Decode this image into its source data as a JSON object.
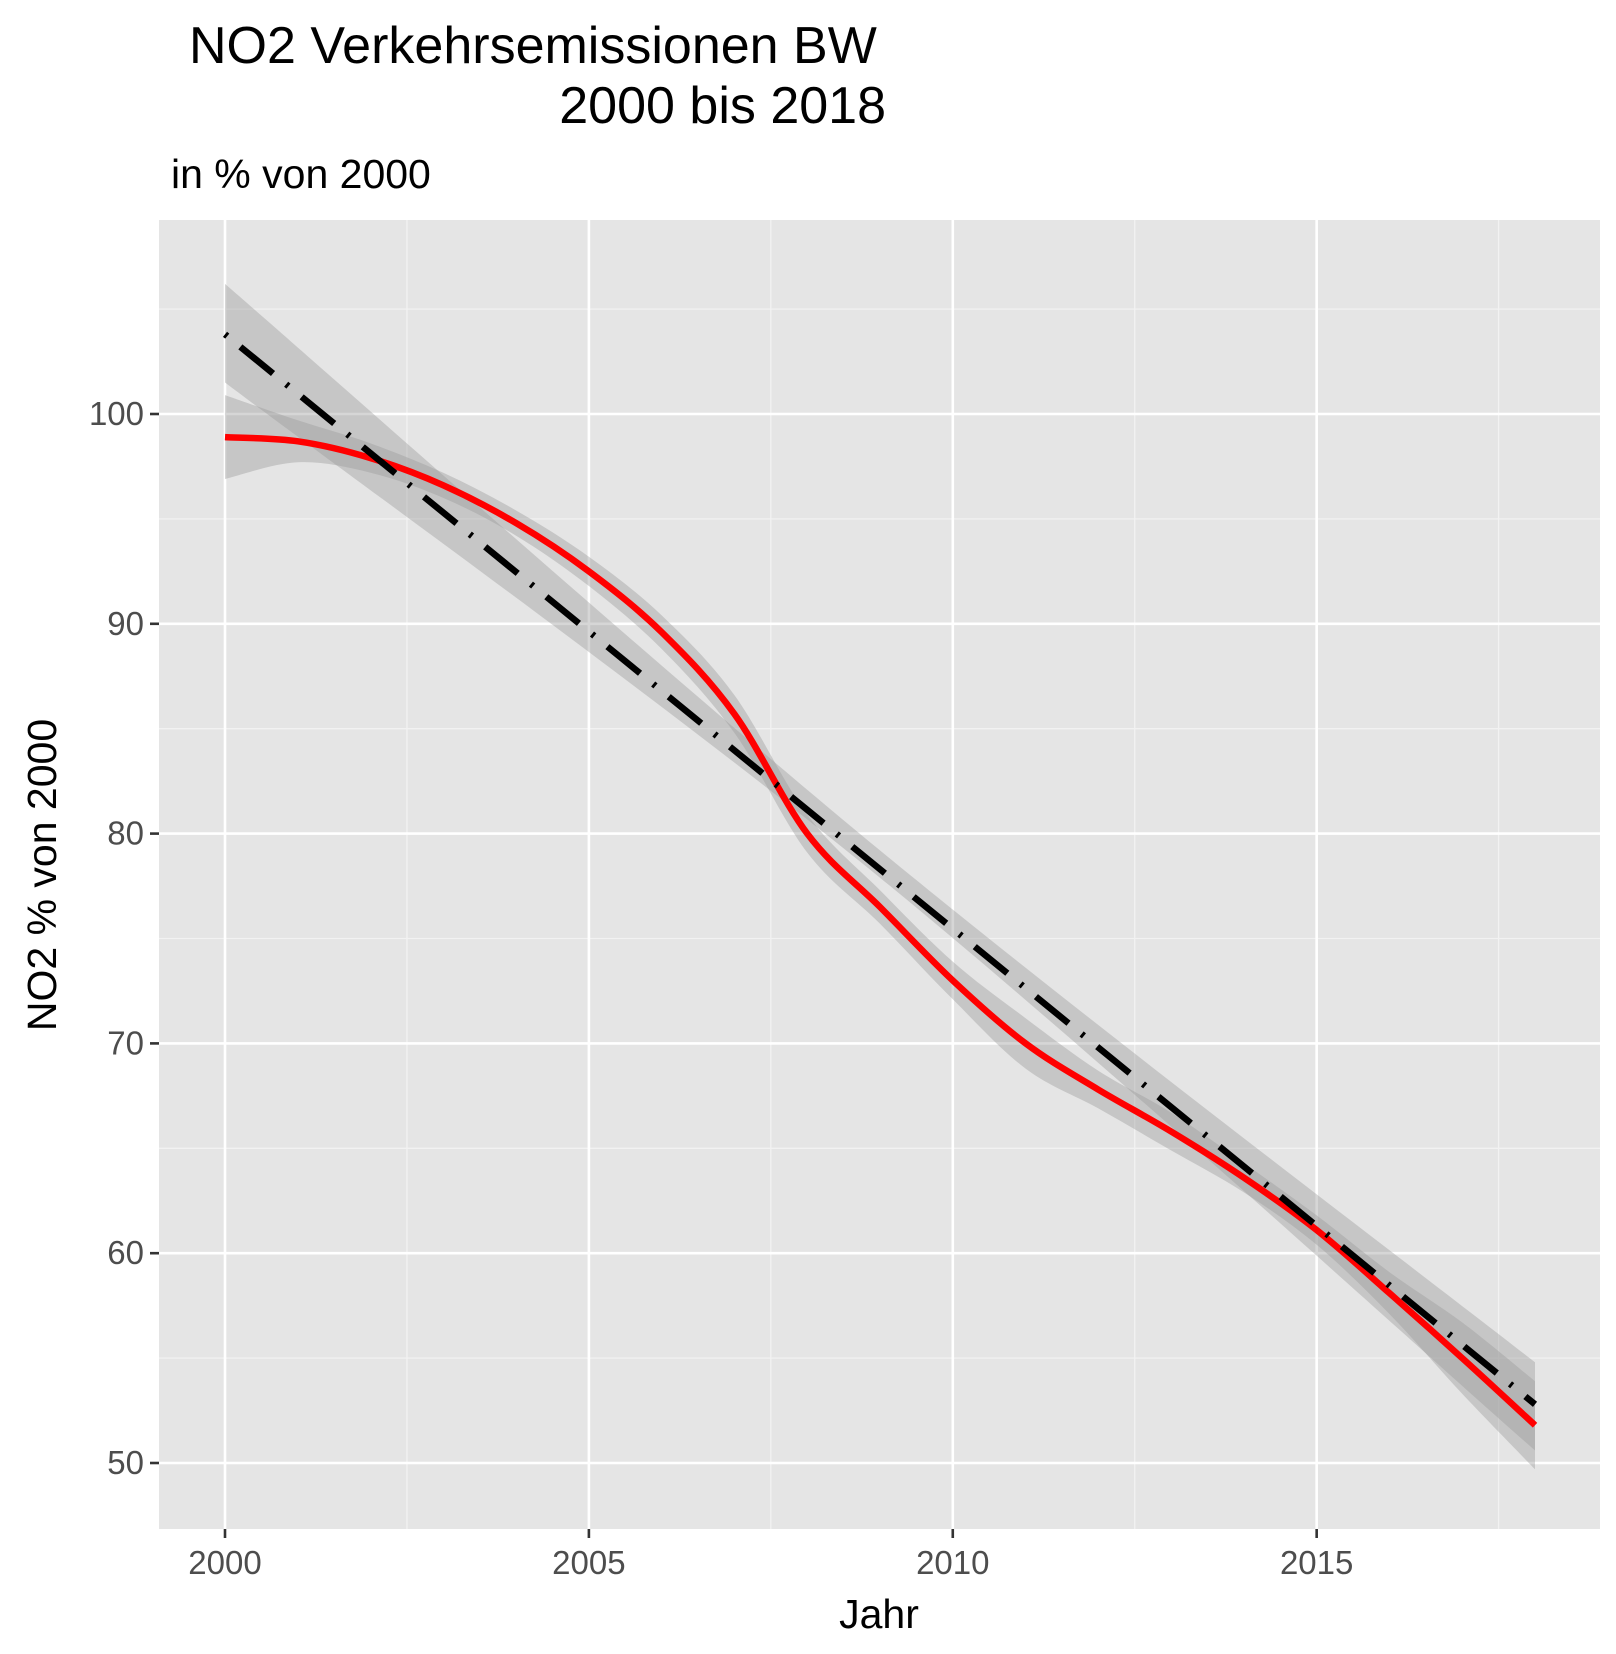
{
  "chart_data": {
    "type": "line",
    "title_line1": "NO2 Verkehrsemissionen BW",
    "title_line2": "2000 bis 2018",
    "subtitle": "in % von 2000",
    "xlabel": "Jahr",
    "ylabel": "NO2 % von 2000",
    "xlim": [
      2000,
      2018
    ],
    "ylim": [
      46.75,
      108.25
    ],
    "x_ticks": [
      2000,
      2005,
      2010,
      2015
    ],
    "y_ticks": [
      50,
      60,
      70,
      80,
      90,
      100
    ],
    "grid": true,
    "background": "#e5e5e5",
    "series": [
      {
        "style": "solid",
        "color": "#ff0000",
        "smoother": "loess",
        "x": [
          2000,
          2001,
          2002,
          2003,
          2004,
          2005,
          2006,
          2007,
          2008,
          2009,
          2010,
          2011,
          2012,
          2013,
          2014,
          2015,
          2016,
          2017,
          2018
        ],
        "y": [
          98.9,
          98.7,
          97.9,
          96.6,
          94.8,
          92.5,
          89.6,
          85.7,
          80.0,
          76.5,
          73.0,
          70.0,
          67.8,
          65.8,
          63.6,
          61.1,
          58.1,
          55.0,
          51.8
        ],
        "ci_lower": [
          96.9,
          97.7,
          97.2,
          96.0,
          94.2,
          91.8,
          88.8,
          84.8,
          79.1,
          75.7,
          72.1,
          68.8,
          66.9,
          64.9,
          62.9,
          60.4,
          57.1,
          53.3,
          49.7
        ],
        "ci_upper": [
          100.9,
          99.7,
          98.6,
          97.2,
          95.4,
          93.2,
          90.4,
          86.6,
          80.9,
          77.3,
          73.9,
          71.2,
          68.7,
          66.7,
          64.3,
          61.8,
          59.1,
          56.7,
          53.9
        ]
      },
      {
        "style": "dot-dash",
        "color": "#000000",
        "smoother": "linear",
        "x": [
          2000,
          2018
        ],
        "y": [
          103.8,
          52.8
        ],
        "ci_lower_x": [
          2000,
          2009,
          2018
        ],
        "ci_lower": [
          101.5,
          77.9,
          50.6
        ],
        "ci_upper_x": [
          2000,
          2009,
          2018
        ],
        "ci_upper": [
          106.2,
          79.2,
          54.8
        ]
      }
    ]
  }
}
